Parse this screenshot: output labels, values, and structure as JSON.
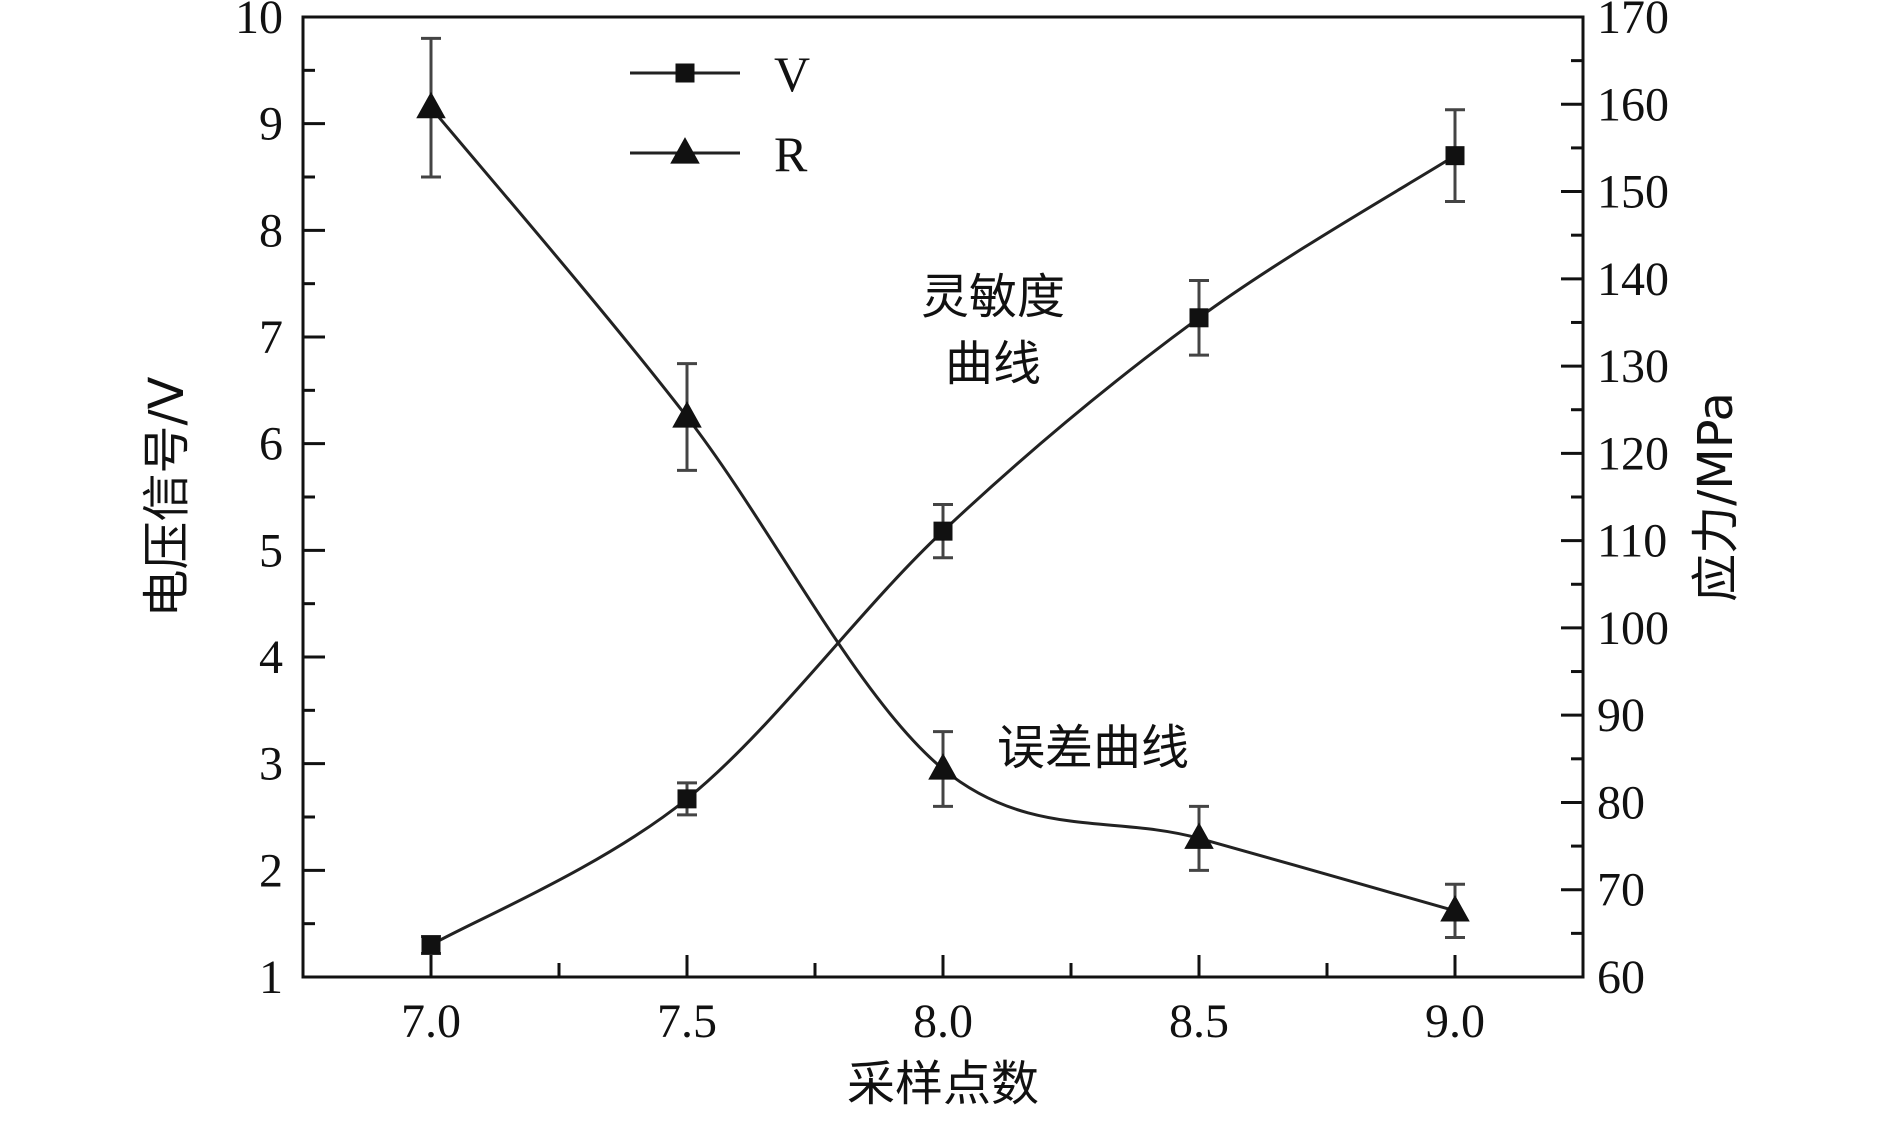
{
  "chart_data": {
    "type": "line",
    "xlabel": "采样点数",
    "ylabel_left": "电压信号/V",
    "ylabel_right": "应力/MPa",
    "xlim": [
      6.75,
      9.25
    ],
    "ylim_left": [
      1,
      10
    ],
    "ylim_right": [
      60,
      170
    ],
    "x_ticks": [
      "7.0",
      "7.5",
      "8.0",
      "8.5",
      "9.0"
    ],
    "y_left_ticks": [
      "1",
      "2",
      "3",
      "4",
      "5",
      "6",
      "7",
      "8",
      "9",
      "10"
    ],
    "y_right_ticks": [
      "60",
      "70",
      "80",
      "90",
      "100",
      "110",
      "120",
      "130",
      "140",
      "150",
      "160",
      "170"
    ],
    "grid": false,
    "legend_position": "top-left",
    "annotations": {
      "sensitivity_line1": "灵敏度",
      "sensitivity_line2": "曲线",
      "error": "误差曲线"
    },
    "series": [
      {
        "name": "V",
        "marker": "square",
        "x": [
          7.0,
          7.5,
          8.0,
          8.5,
          9.0
        ],
        "y": [
          1.3,
          2.67,
          5.18,
          7.18,
          8.7
        ],
        "err": [
          0.08,
          0.15,
          0.25,
          0.35,
          0.43
        ]
      },
      {
        "name": "R",
        "marker": "triangle",
        "x": [
          7.0,
          7.5,
          8.0,
          8.5,
          9.0
        ],
        "y": [
          9.15,
          6.25,
          2.95,
          2.3,
          1.62
        ],
        "err": [
          0.65,
          0.5,
          0.35,
          0.3,
          0.25
        ]
      }
    ]
  }
}
